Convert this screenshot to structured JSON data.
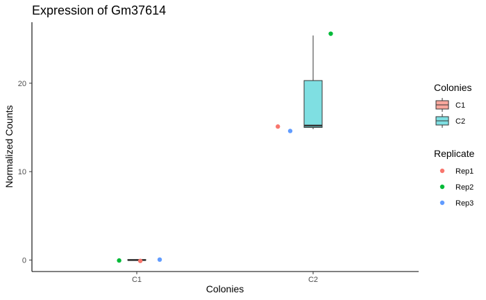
{
  "chart_data": {
    "type": "box",
    "title": "Expression of Gm37614",
    "xlabel": "Colonies",
    "ylabel": "Normalized Counts",
    "categories": [
      "C1",
      "C2"
    ],
    "ylim": [
      -1.3,
      26.9
    ],
    "yticks": [
      0,
      10,
      20
    ],
    "grid": false,
    "boxes": [
      {
        "category": "C1",
        "min": 0.0,
        "q1": 0.0,
        "median": 0.0,
        "q3": 0.05,
        "max": 0.1,
        "fill": "#F8A79D"
      },
      {
        "category": "C2",
        "min": 14.8,
        "q1": 15.0,
        "median": 15.2,
        "q3": 20.3,
        "max": 25.4,
        "fill": "#7FDFE2"
      }
    ],
    "points": [
      {
        "category": "C1",
        "replicate": "Rep1",
        "y": -0.1,
        "jitter": 0.02
      },
      {
        "category": "C1",
        "replicate": "Rep2",
        "y": -0.05,
        "jitter": -0.1
      },
      {
        "category": "C1",
        "replicate": "Rep3",
        "y": 0.05,
        "jitter": 0.13
      },
      {
        "category": "C2",
        "replicate": "Rep1",
        "y": 15.1,
        "jitter": -0.2
      },
      {
        "category": "C2",
        "replicate": "Rep2",
        "y": 25.6,
        "jitter": 0.1
      },
      {
        "category": "C2",
        "replicate": "Rep3",
        "y": 14.6,
        "jitter": -0.13
      }
    ],
    "legends": {
      "placement": "right",
      "fill": {
        "title": "Colonies",
        "items": [
          {
            "label": "C1",
            "color": "#F8A79D"
          },
          {
            "label": "C2",
            "color": "#7FDFE2"
          }
        ]
      },
      "color": {
        "title": "Replicate",
        "items": [
          {
            "label": "Rep1",
            "color": "#F8766D"
          },
          {
            "label": "Rep2",
            "color": "#00BA38"
          },
          {
            "label": "Rep3",
            "color": "#619CFF"
          }
        ]
      }
    }
  }
}
